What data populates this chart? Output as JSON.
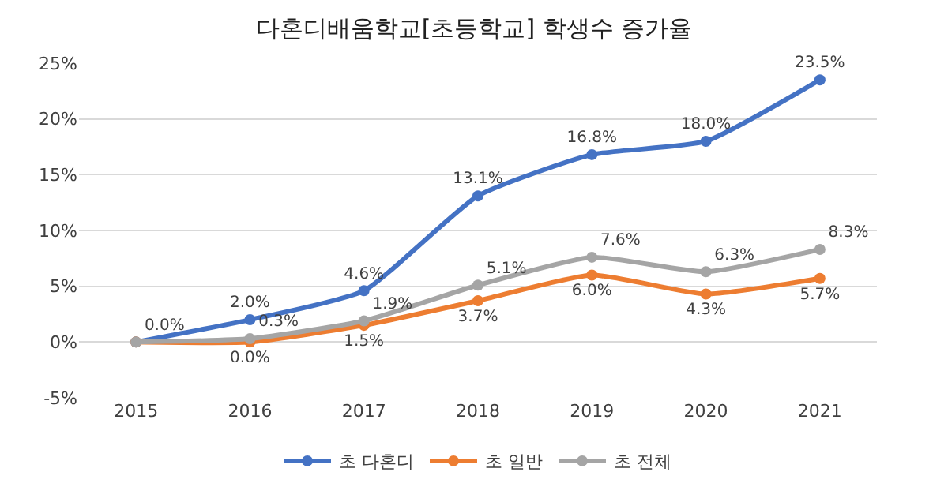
{
  "chart_data": {
    "type": "line",
    "title": "다혼디배움학교[초등학교] 학생수 증가율",
    "categories": [
      "2015",
      "2016",
      "2017",
      "2018",
      "2019",
      "2020",
      "2021"
    ],
    "series": [
      {
        "name": "초 다혼디",
        "color": "#4472c4",
        "values": [
          0.0,
          2.0,
          4.6,
          13.1,
          16.8,
          18.0,
          23.5
        ],
        "value_labels": [
          "0.0%",
          "2.0%",
          "4.6%",
          "13.1%",
          "16.8%",
          "18.0%",
          "23.5%"
        ]
      },
      {
        "name": "초 일반",
        "color": "#ed7d31",
        "values": [
          0.0,
          0.0,
          1.5,
          3.7,
          6.0,
          4.3,
          5.7
        ],
        "value_labels": [
          null,
          "0.0%",
          "1.5%",
          "3.7%",
          "6.0%",
          "4.3%",
          "5.7%"
        ]
      },
      {
        "name": "초 전체",
        "color": "#a5a5a5",
        "values": [
          0.0,
          0.3,
          1.9,
          5.1,
          7.6,
          6.3,
          8.3
        ],
        "value_labels": [
          null,
          "0.3%",
          "1.9%",
          "5.1%",
          "7.6%",
          "6.3%",
          "8.3%"
        ]
      }
    ],
    "ylim": [
      -5,
      25
    ],
    "yticks": [
      {
        "value": -5,
        "label": "-5%"
      },
      {
        "value": 0,
        "label": "0%"
      },
      {
        "value": 5,
        "label": "5%"
      },
      {
        "value": 10,
        "label": "10%"
      },
      {
        "value": 15,
        "label": "15%"
      },
      {
        "value": 20,
        "label": "20%"
      },
      {
        "value": 25,
        "label": "25%"
      }
    ],
    "grid": "y",
    "legend": "bottom",
    "marker": "circle",
    "line_style": "solid"
  }
}
